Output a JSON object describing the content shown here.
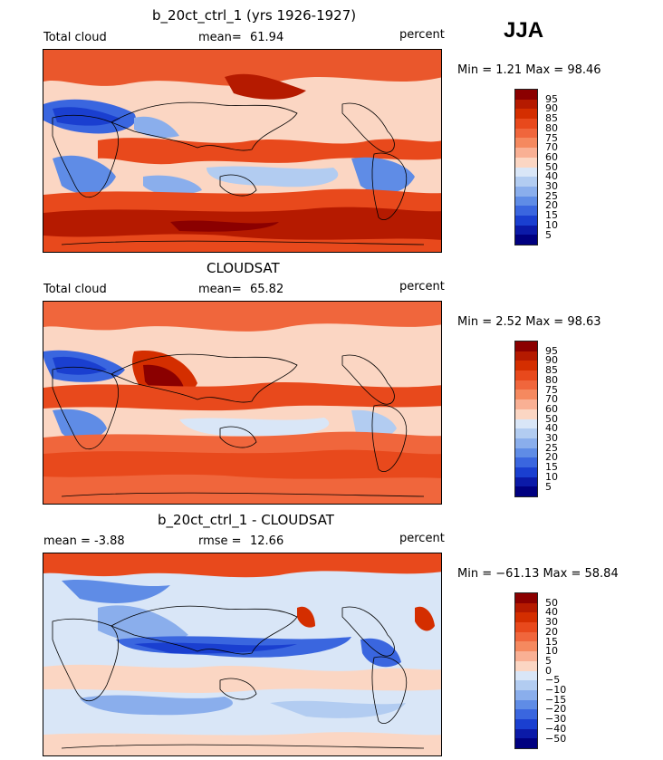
{
  "season": "JJA",
  "panels": [
    {
      "title": "b_20ct_ctrl_1 (yrs 1926-1927)",
      "left_label": "Total cloud",
      "mean_label": "mean=",
      "mean_value": "61.94",
      "units": "percent",
      "minmax": "Min =    1.21 Max =   98.46",
      "colorbar_levels": [
        "95",
        "90",
        "85",
        "80",
        "75",
        "70",
        "60",
        "50",
        "40",
        "30",
        "25",
        "20",
        "15",
        "10",
        "5"
      ],
      "palette": "abs"
    },
    {
      "title": "CLOUDSAT",
      "left_label": "Total cloud",
      "mean_label": "mean=",
      "mean_value": "65.82",
      "units": "percent",
      "minmax": "Min =    2.52 Max =   98.63",
      "colorbar_levels": [
        "95",
        "90",
        "85",
        "80",
        "75",
        "70",
        "60",
        "50",
        "40",
        "30",
        "25",
        "20",
        "15",
        "10",
        "5"
      ],
      "palette": "abs"
    },
    {
      "title": "b_20ct_ctrl_1 - CLOUDSAT",
      "left_label": "mean =   -3.88",
      "mean_label": "rmse =",
      "mean_value": "12.66",
      "units": "percent",
      "minmax": "Min = −61.13 Max =  58.84",
      "colorbar_levels": [
        "50",
        "40",
        "30",
        "20",
        "15",
        "10",
        "5",
        "0",
        "−5",
        "−10",
        "−15",
        "−20",
        "−30",
        "−40",
        "−50"
      ],
      "palette": "diff"
    }
  ],
  "colors": {
    "abs_scale": [
      "#8b0000",
      "#b51a00",
      "#d42e00",
      "#e8491c",
      "#f0663c",
      "#f5895f",
      "#f9b094",
      "#fbd6c3",
      "#d9e6f7",
      "#b2ccf1",
      "#8aaeec",
      "#5f8ce6",
      "#3a66df",
      "#1a3fd0",
      "#0b1aa8",
      "#000080"
    ],
    "diff_scale": [
      "#8b0000",
      "#b51a00",
      "#d42e00",
      "#e8491c",
      "#f0663c",
      "#f5895f",
      "#f9b094",
      "#fbd6c3",
      "#d9e6f7",
      "#b2ccf1",
      "#8aaeec",
      "#5f8ce6",
      "#3a66df",
      "#1a3fd0",
      "#0b1aa8",
      "#000080"
    ]
  }
}
